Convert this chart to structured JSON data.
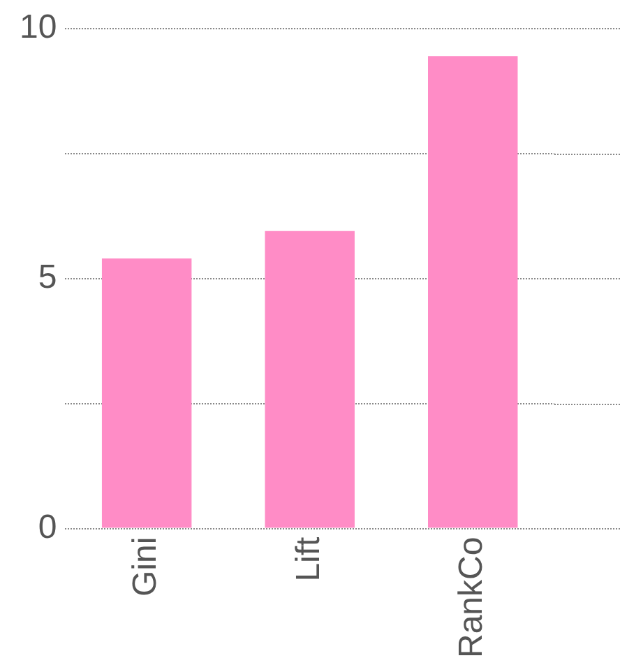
{
  "chart_data": {
    "type": "bar",
    "categories": [
      "Gini",
      "Lift",
      "RankCo"
    ],
    "values": [
      5.4,
      5.95,
      9.45
    ],
    "color": "#ff8cc6",
    "ylim": [
      0,
      10
    ],
    "yticks": [
      0,
      {
        "value": 2.5,
        "label": null
      },
      5,
      {
        "value": 7.5,
        "label": null
      },
      10
    ],
    "grid": "y",
    "legend": false
  }
}
